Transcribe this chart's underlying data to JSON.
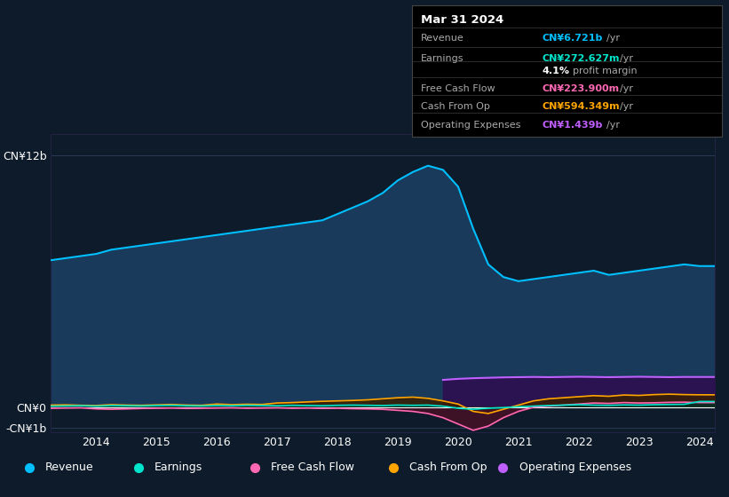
{
  "background_color": "#0d1b2a",
  "plot_bg_color": "#0d1b2a",
  "title": "Mar 31 2024",
  "info_box_rows": [
    {
      "label": "Revenue",
      "value": "CN¥6.721b /yr",
      "color": "#00bfff"
    },
    {
      "label": "Earnings",
      "value": "CN¥272.627m /yr",
      "color": "#00e5cc"
    },
    {
      "label": "",
      "value": "4.1% profit margin",
      "color": "#ffffff"
    },
    {
      "label": "Free Cash Flow",
      "value": "CN¥223.900m /yr",
      "color": "#ff69b4"
    },
    {
      "label": "Cash From Op",
      "value": "CN¥594.349m /yr",
      "color": "#ffa500"
    },
    {
      "label": "Operating Expenses",
      "value": "CN¥1.439b /yr",
      "color": "#bf5fff"
    }
  ],
  "years": [
    2013.25,
    2013.5,
    2013.75,
    2014.0,
    2014.25,
    2014.5,
    2014.75,
    2015.0,
    2015.25,
    2015.5,
    2015.75,
    2016.0,
    2016.25,
    2016.5,
    2016.75,
    2017.0,
    2017.25,
    2017.5,
    2017.75,
    2018.0,
    2018.25,
    2018.5,
    2018.75,
    2019.0,
    2019.25,
    2019.5,
    2019.75,
    2020.0,
    2020.25,
    2020.5,
    2020.75,
    2021.0,
    2021.25,
    2021.5,
    2021.75,
    2022.0,
    2022.25,
    2022.5,
    2022.75,
    2023.0,
    2023.25,
    2023.5,
    2023.75,
    2024.0,
    2024.25
  ],
  "revenue": [
    7.0,
    7.1,
    7.2,
    7.3,
    7.5,
    7.6,
    7.7,
    7.8,
    7.9,
    8.0,
    8.1,
    8.2,
    8.3,
    8.4,
    8.5,
    8.6,
    8.7,
    8.8,
    8.9,
    9.2,
    9.5,
    9.8,
    10.2,
    10.8,
    11.2,
    11.5,
    11.3,
    10.5,
    8.5,
    6.8,
    6.2,
    6.0,
    6.1,
    6.2,
    6.3,
    6.4,
    6.5,
    6.3,
    6.4,
    6.5,
    6.6,
    6.7,
    6.8,
    6.72,
    6.72
  ],
  "earnings": [
    0.05,
    0.06,
    0.07,
    0.05,
    0.08,
    0.07,
    0.06,
    0.08,
    0.09,
    0.07,
    0.06,
    0.08,
    0.07,
    0.09,
    0.08,
    0.07,
    0.09,
    0.08,
    0.07,
    0.09,
    0.1,
    0.09,
    0.08,
    0.1,
    0.09,
    0.1,
    0.05,
    -0.05,
    -0.1,
    -0.05,
    -0.02,
    0.02,
    0.05,
    0.08,
    0.1,
    0.12,
    0.1,
    0.09,
    0.11,
    0.1,
    0.12,
    0.13,
    0.14,
    0.27,
    0.27
  ],
  "free_cash_flow": [
    -0.05,
    -0.04,
    -0.03,
    -0.08,
    -0.1,
    -0.08,
    -0.06,
    -0.05,
    -0.04,
    -0.06,
    -0.05,
    -0.04,
    -0.03,
    -0.05,
    -0.04,
    -0.03,
    -0.05,
    -0.04,
    -0.06,
    -0.05,
    -0.07,
    -0.08,
    -0.1,
    -0.15,
    -0.2,
    -0.3,
    -0.5,
    -0.8,
    -1.1,
    -0.9,
    -0.5,
    -0.2,
    0.0,
    0.05,
    0.1,
    0.15,
    0.2,
    0.18,
    0.22,
    0.2,
    0.21,
    0.23,
    0.24,
    0.22,
    0.22
  ],
  "cash_from_op": [
    0.1,
    0.11,
    0.09,
    0.08,
    0.12,
    0.1,
    0.09,
    0.11,
    0.13,
    0.1,
    0.09,
    0.15,
    0.12,
    0.14,
    0.13,
    0.2,
    0.22,
    0.25,
    0.28,
    0.3,
    0.32,
    0.35,
    0.4,
    0.45,
    0.48,
    0.42,
    0.3,
    0.15,
    -0.2,
    -0.3,
    -0.1,
    0.1,
    0.3,
    0.4,
    0.45,
    0.5,
    0.55,
    0.52,
    0.58,
    0.56,
    0.6,
    0.62,
    0.6,
    0.59,
    0.59
  ],
  "operating_expenses": [
    null,
    null,
    null,
    null,
    null,
    null,
    null,
    null,
    null,
    null,
    null,
    null,
    null,
    null,
    null,
    null,
    null,
    null,
    null,
    null,
    null,
    null,
    null,
    null,
    null,
    null,
    1.3,
    1.35,
    1.38,
    1.4,
    1.42,
    1.43,
    1.44,
    1.43,
    1.44,
    1.45,
    1.44,
    1.43,
    1.44,
    1.45,
    1.44,
    1.43,
    1.44,
    1.439,
    1.439
  ],
  "ylim": [
    -1.2,
    13.0
  ],
  "yticks": [
    -1.0,
    0.0,
    12.0
  ],
  "ytick_labels": [
    "-CN¥1b",
    "CN¥0",
    "CN¥12b"
  ],
  "xticks": [
    2014,
    2015,
    2016,
    2017,
    2018,
    2019,
    2020,
    2021,
    2022,
    2023,
    2024
  ],
  "revenue_color": "#00bfff",
  "revenue_fill": "#1a3a5c",
  "earnings_color": "#00e5cc",
  "earnings_fill": "#003322",
  "free_cash_flow_color": "#ff69b4",
  "free_cash_flow_fill": "#4a1025",
  "cash_from_op_color": "#ffa500",
  "cash_from_op_fill": "#3a2000",
  "op_exp_color": "#bf5fff",
  "op_exp_fill": "#2d0f50",
  "legend_items": [
    {
      "label": "Revenue",
      "color": "#00bfff"
    },
    {
      "label": "Earnings",
      "color": "#00e5cc"
    },
    {
      "label": "Free Cash Flow",
      "color": "#ff69b4"
    },
    {
      "label": "Cash From Op",
      "color": "#ffa500"
    },
    {
      "label": "Operating Expenses",
      "color": "#bf5fff"
    }
  ]
}
